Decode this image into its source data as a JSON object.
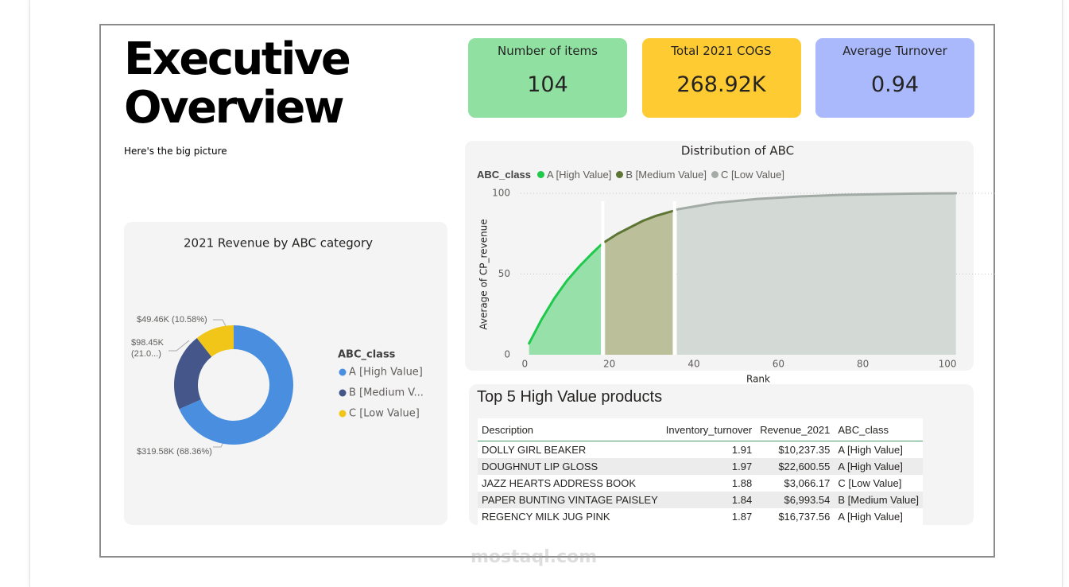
{
  "header": {
    "title_lines": [
      "Executive",
      "Overview"
    ],
    "subtitle": "Here's the big picture"
  },
  "kpis": [
    {
      "label": "Number of items",
      "value": "104",
      "color": "#90e0a2"
    },
    {
      "label": "Total 2021 COGS",
      "value": "268.92K",
      "color": "#ffcb33"
    },
    {
      "label": "Average Turnover",
      "value": "0.94",
      "color": "#a9b9fc"
    }
  ],
  "chart_data": [
    {
      "type": "donut",
      "title": "2021 Revenue by ABC category",
      "legend_title": "ABC_class",
      "categories": [
        "A [High Value]",
        "B [Medium V...",
        "C [Low Value]"
      ],
      "values": [
        319580,
        98450,
        49460
      ],
      "value_labels": [
        "$319.58K (68.36%)",
        "$98.45K\n(21.0...)",
        "$49.46K (10.58%)"
      ],
      "colors": [
        "#4a8fdf",
        "#45578a",
        "#f2c618"
      ]
    },
    {
      "type": "area",
      "title": "Distribution of ABC",
      "legend_title": "ABC_class",
      "x_label": "Rank",
      "y_label": "Average of CP_revenue",
      "xlim": [
        -1,
        103
      ],
      "ylim": [
        0,
        100
      ],
      "xticks": [
        0,
        20,
        40,
        60,
        80,
        100
      ],
      "yticks": [
        0,
        50,
        100
      ],
      "grid": true,
      "series": [
        {
          "name": "A [High Value]",
          "color": "#1ec94c",
          "fill": "#98e0aa",
          "x": [
            1,
            4,
            7,
            10,
            13,
            16,
            18
          ],
          "values": [
            7,
            22,
            35,
            46,
            55,
            63,
            68
          ]
        },
        {
          "name": "B [Medium Value]",
          "color": "#5d7535",
          "fill": "#bbc09a",
          "x": [
            19,
            22,
            25,
            28,
            31,
            35
          ],
          "values": [
            70,
            75,
            79,
            83,
            86,
            89
          ]
        },
        {
          "name": "C [Low Value]",
          "color": "#a3aba6",
          "fill": "#d3d9d5",
          "x": [
            36,
            45,
            55,
            65,
            75,
            85,
            95,
            102
          ],
          "values": [
            90,
            94,
            96.5,
            98,
            99,
            99.5,
            99.9,
            100
          ]
        }
      ]
    }
  ],
  "table": {
    "title": "Top 5 High Value products",
    "columns": [
      "Description",
      "Inventory_turnover",
      "Revenue_2021",
      "ABC_class"
    ],
    "rows": [
      [
        "DOLLY GIRL BEAKER",
        "1.91",
        "$10,237.35",
        "A [High Value]"
      ],
      [
        "DOUGHNUT LIP GLOSS",
        "1.97",
        "$22,600.55",
        "A [High Value]"
      ],
      [
        "JAZZ HEARTS ADDRESS BOOK",
        "1.88",
        "$3,066.17",
        "C [Low Value]"
      ],
      [
        "PAPER BUNTING VINTAGE PAISLEY",
        "1.84",
        "$6,993.54",
        "B [Medium Value]"
      ],
      [
        "REGENCY MILK JUG PINK",
        "1.87",
        "$16,737.56",
        "A [High Value]"
      ]
    ]
  },
  "watermark": "mostaql.com"
}
